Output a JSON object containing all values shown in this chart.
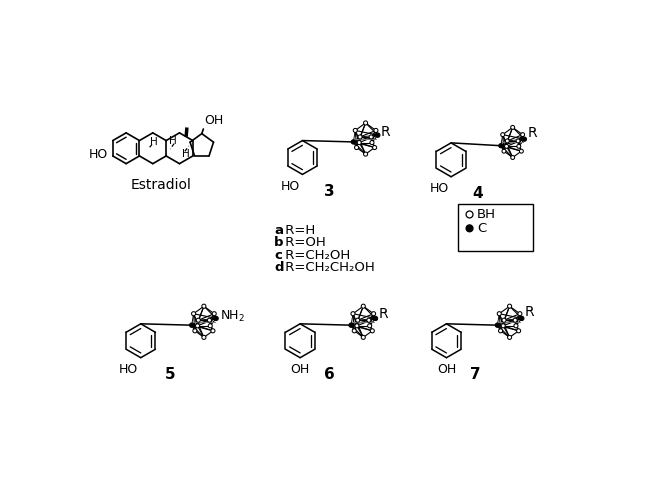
{
  "bg_color": "#ffffff",
  "figsize": [
    6.51,
    5.04
  ],
  "dpi": 100,
  "legend_lines": [
    [
      "a",
      " R=H"
    ],
    [
      "b",
      " R=OH"
    ],
    [
      "c",
      " R=CH₂OH"
    ],
    [
      "d",
      " R=CH₂CH₂OH"
    ]
  ],
  "estradiol_label": "Estradiol",
  "legend_bh_label": "BH",
  "legend_c_label": "C",
  "compound_numbers": [
    "3",
    "4",
    "5",
    "6",
    "7"
  ]
}
